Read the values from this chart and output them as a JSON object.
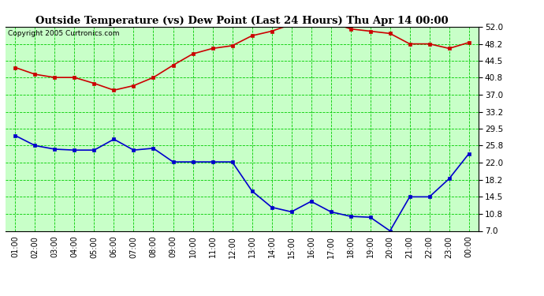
{
  "title": "Outside Temperature (vs) Dew Point (Last 24 Hours) Thu Apr 14 00:00",
  "copyright": "Copyright 2005 Curtronics.com",
  "x_labels": [
    "01:00",
    "02:00",
    "03:00",
    "04:00",
    "05:00",
    "06:00",
    "07:00",
    "08:00",
    "09:00",
    "10:00",
    "11:00",
    "12:00",
    "13:00",
    "14:00",
    "15:00",
    "16:00",
    "17:00",
    "18:00",
    "19:00",
    "20:00",
    "21:00",
    "22:00",
    "23:00",
    "00:00"
  ],
  "temp_values": [
    43.0,
    41.5,
    40.8,
    40.8,
    39.5,
    38.0,
    39.0,
    40.8,
    43.5,
    46.0,
    47.2,
    47.8,
    50.0,
    51.0,
    52.5,
    53.0,
    53.0,
    51.5,
    51.0,
    50.5,
    48.2,
    48.2,
    47.2,
    48.5
  ],
  "dew_values": [
    28.0,
    25.8,
    25.0,
    24.8,
    24.8,
    27.2,
    24.8,
    25.2,
    22.2,
    22.2,
    22.2,
    22.2,
    15.8,
    12.2,
    11.2,
    13.5,
    11.2,
    10.2,
    10.0,
    7.0,
    14.5,
    14.5,
    18.5,
    24.0
  ],
  "temp_color": "#cc0000",
  "dew_color": "#0000cc",
  "bg_color": "#c8ffc8",
  "grid_color": "#00cc00",
  "border_color": "#000000",
  "title_bg": "#ffffff",
  "yticks": [
    7.0,
    10.8,
    14.5,
    18.2,
    22.0,
    25.8,
    29.5,
    33.2,
    37.0,
    40.8,
    44.5,
    48.2,
    52.0
  ],
  "ymin": 7.0,
  "ymax": 52.0,
  "marker": "s",
  "marker_size": 2.5,
  "line_width": 1.2
}
